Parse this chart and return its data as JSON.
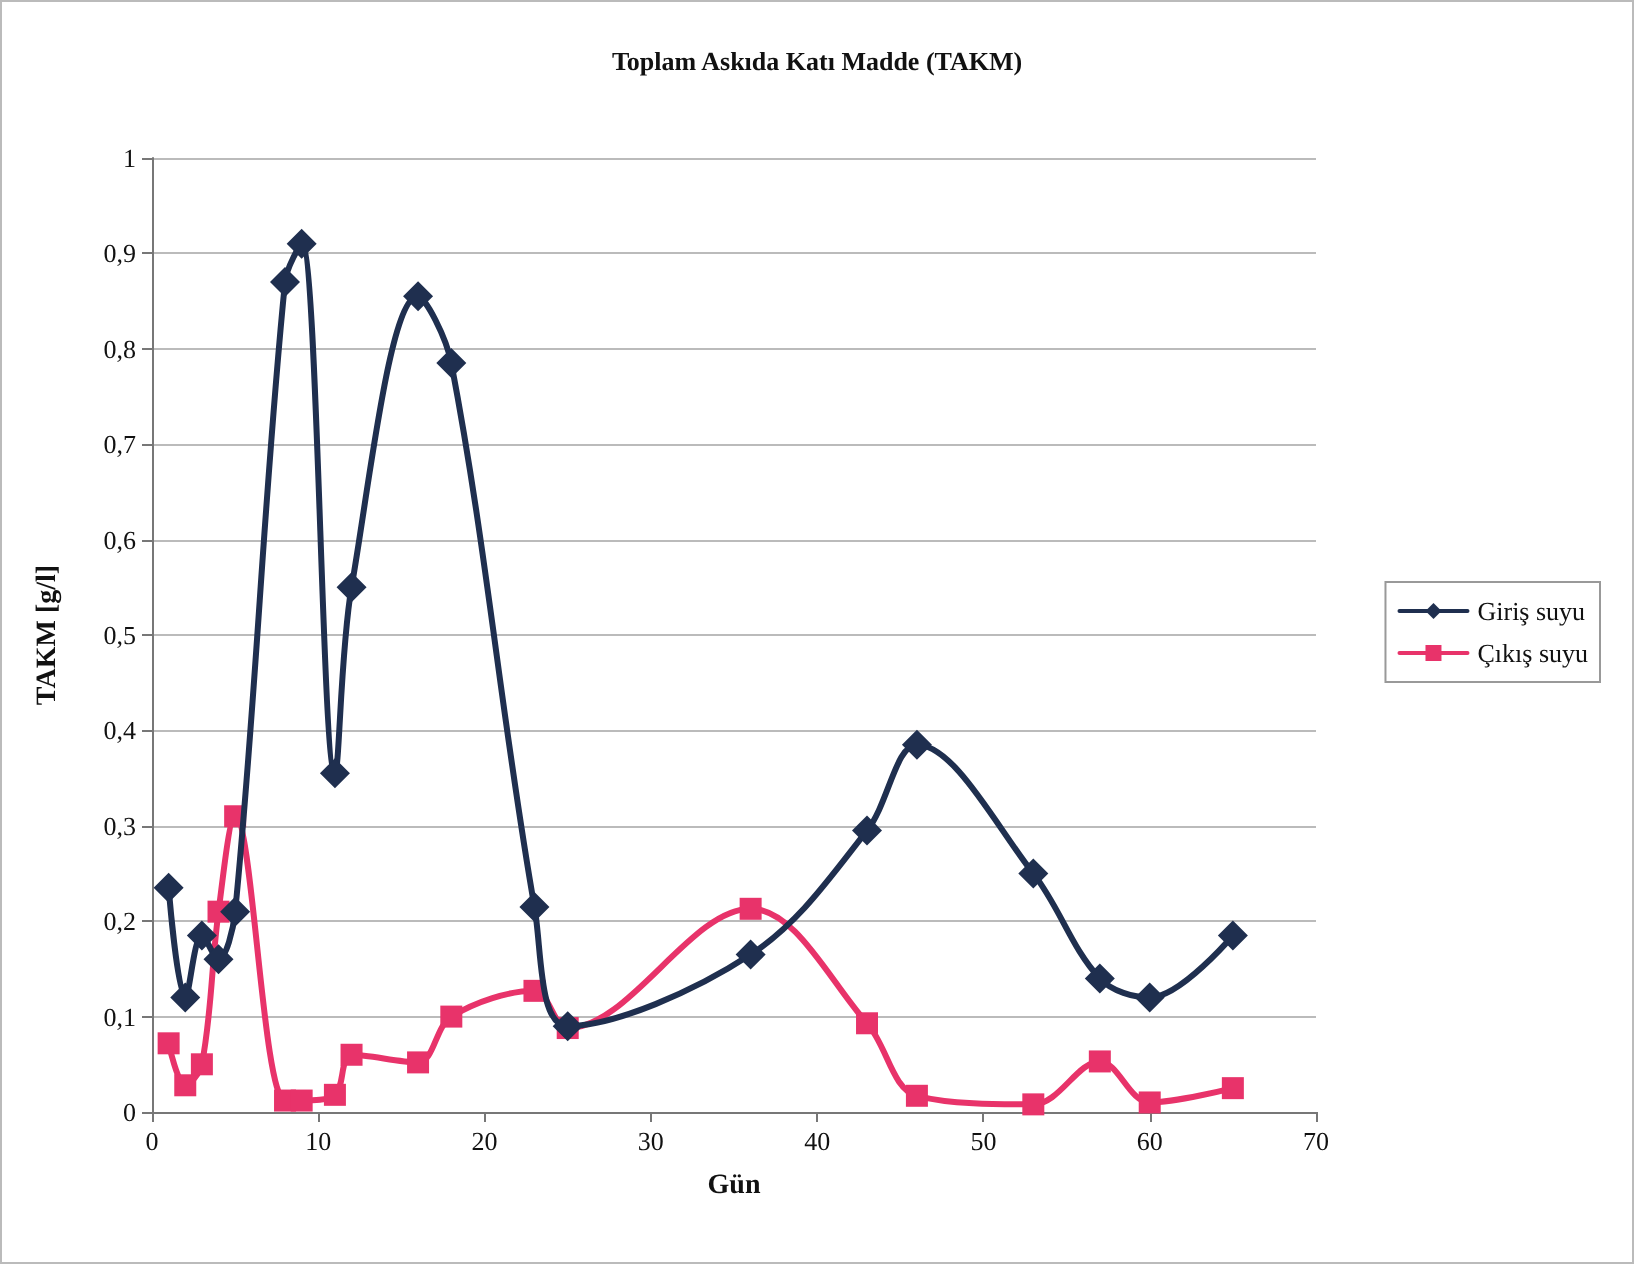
{
  "chart_data": {
    "type": "line",
    "title": "Toplam Askıda Katı Madde (TAKM)",
    "xlabel": "Gün",
    "ylabel": "TAKM [g/l]",
    "series": [
      {
        "name": "Giriş suyu",
        "color": "#1f2f4f",
        "marker": "diamond",
        "x": [
          1,
          2,
          3,
          4,
          5,
          8,
          9,
          11,
          12,
          16,
          18,
          23,
          25,
          36,
          43,
          46,
          53,
          57,
          60,
          65
        ],
        "values": [
          0.235,
          0.12,
          0.185,
          0.16,
          0.21,
          0.87,
          0.91,
          0.355,
          0.55,
          0.855,
          0.785,
          0.215,
          0.09,
          0.165,
          0.295,
          0.385,
          0.25,
          0.14,
          0.12,
          0.185
        ]
      },
      {
        "name": "Çıkış suyu",
        "color": "#e8336a",
        "marker": "square",
        "x": [
          1,
          2,
          3,
          4,
          5,
          8,
          9,
          11,
          12,
          16,
          18,
          23,
          25,
          36,
          43,
          46,
          53,
          57,
          60,
          65
        ],
        "values": [
          0.072,
          0.028,
          0.05,
          0.21,
          0.31,
          0.012,
          0.012,
          0.018,
          0.06,
          0.052,
          0.1,
          0.127,
          0.088,
          0.213,
          0.093,
          0.017,
          0.008,
          0.053,
          0.01,
          0.025
        ]
      }
    ],
    "xlim": [
      0,
      70
    ],
    "xticks": [
      0,
      10,
      20,
      30,
      40,
      50,
      60,
      70
    ],
    "ylim": [
      0,
      1
    ],
    "yticks": [
      {
        "value": 0,
        "label": "0"
      },
      {
        "value": 0.1,
        "label": "0,1"
      },
      {
        "value": 0.2,
        "label": "0,2"
      },
      {
        "value": 0.3,
        "label": "0,3"
      },
      {
        "value": 0.4,
        "label": "0,4"
      },
      {
        "value": 0.5,
        "label": "0,5"
      },
      {
        "value": 0.6,
        "label": "0,6"
      },
      {
        "value": 0.7,
        "label": "0,7"
      },
      {
        "value": 0.8,
        "label": "0,8"
      },
      {
        "value": 0.9,
        "label": "0,9"
      },
      {
        "value": 1,
        "label": "1"
      }
    ],
    "grid": "y",
    "legend": "right",
    "line_style": "solid"
  }
}
